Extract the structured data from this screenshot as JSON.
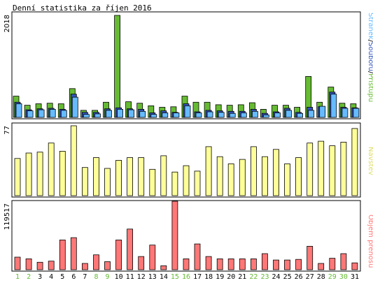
{
  "title": "Denní statistika za říjen 2016",
  "colors": {
    "hits": "#66bb33",
    "files": "#3355bb",
    "pages": "#66bbff",
    "visits": "#ffff99",
    "kbytes": "#ff7777",
    "weekday_label": "#000000",
    "weekend_label": "#66bb33"
  },
  "chart_data": [
    {
      "type": "bar",
      "name": "top",
      "ymax_label": "2018",
      "legend": [
        "Stránek",
        "/",
        "Souborů",
        "/",
        "Přístupů"
      ],
      "categories": [
        "1",
        "2",
        "3",
        "4",
        "5",
        "6",
        "7",
        "8",
        "9",
        "10",
        "11",
        "12",
        "13",
        "14",
        "15",
        "16",
        "17",
        "18",
        "19",
        "20",
        "21",
        "22",
        "23",
        "24",
        "25",
        "26",
        "27",
        "28",
        "29",
        "30",
        "31"
      ],
      "weekend_days": [
        "1",
        "2",
        "8",
        "9",
        "15",
        "16",
        "22",
        "23",
        "29",
        "30"
      ],
      "ylim": [
        0,
        2018
      ],
      "series": [
        {
          "name": "Přístupů",
          "values": [
            420,
            240,
            270,
            280,
            270,
            570,
            140,
            140,
            300,
            2018,
            310,
            280,
            230,
            200,
            210,
            420,
            300,
            300,
            250,
            240,
            250,
            290,
            160,
            240,
            240,
            200,
            810,
            300,
            600,
            280,
            270
          ]
        },
        {
          "name": "Souborů",
          "values": [
            300,
            150,
            170,
            180,
            160,
            460,
            100,
            100,
            170,
            190,
            170,
            160,
            90,
            130,
            100,
            270,
            110,
            140,
            130,
            120,
            120,
            160,
            80,
            110,
            180,
            100,
            200,
            210,
            500,
            200,
            190
          ]
        },
        {
          "name": "Stránek",
          "values": [
            270,
            130,
            150,
            160,
            140,
            400,
            60,
            70,
            140,
            160,
            150,
            120,
            60,
            90,
            90,
            230,
            90,
            110,
            100,
            80,
            90,
            120,
            50,
            90,
            140,
            80,
            140,
            220,
            460,
            180,
            180
          ]
        }
      ]
    },
    {
      "type": "bar",
      "name": "middle",
      "ymax_label": "77",
      "legend": [
        "Návštěv"
      ],
      "categories": [
        "1",
        "2",
        "3",
        "4",
        "5",
        "6",
        "7",
        "8",
        "9",
        "10",
        "11",
        "12",
        "13",
        "14",
        "15",
        "16",
        "17",
        "18",
        "19",
        "20",
        "21",
        "22",
        "23",
        "24",
        "25",
        "26",
        "27",
        "28",
        "29",
        "30",
        "31"
      ],
      "ylim": [
        0,
        77
      ],
      "series": [
        {
          "name": "Návštěv",
          "values": [
            41,
            47,
            48,
            58,
            49,
            77,
            31,
            42,
            30,
            39,
            42,
            42,
            29,
            44,
            26,
            33,
            27,
            54,
            43,
            35,
            40,
            54,
            43,
            51,
            35,
            42,
            58,
            60,
            55,
            59,
            74
          ]
        }
      ]
    },
    {
      "type": "bar",
      "name": "bottom",
      "ymax_label": "119517",
      "legend": [
        "Objem přenosu"
      ],
      "categories": [
        "1",
        "2",
        "3",
        "4",
        "5",
        "6",
        "7",
        "8",
        "9",
        "10",
        "11",
        "12",
        "13",
        "14",
        "15",
        "16",
        "17",
        "18",
        "19",
        "20",
        "21",
        "22",
        "23",
        "24",
        "25",
        "26",
        "27",
        "28",
        "29",
        "30",
        "31"
      ],
      "ylim": [
        0,
        119517
      ],
      "series": [
        {
          "name": "Objem přenosu",
          "values": [
            22000,
            19000,
            13000,
            15000,
            52000,
            56000,
            11000,
            26000,
            14000,
            52000,
            71000,
            23000,
            43000,
            7000,
            119517,
            19000,
            45000,
            23000,
            19000,
            19000,
            19000,
            19000,
            28000,
            17000,
            17000,
            18000,
            41000,
            11000,
            20000,
            28000,
            12000
          ]
        }
      ]
    }
  ]
}
